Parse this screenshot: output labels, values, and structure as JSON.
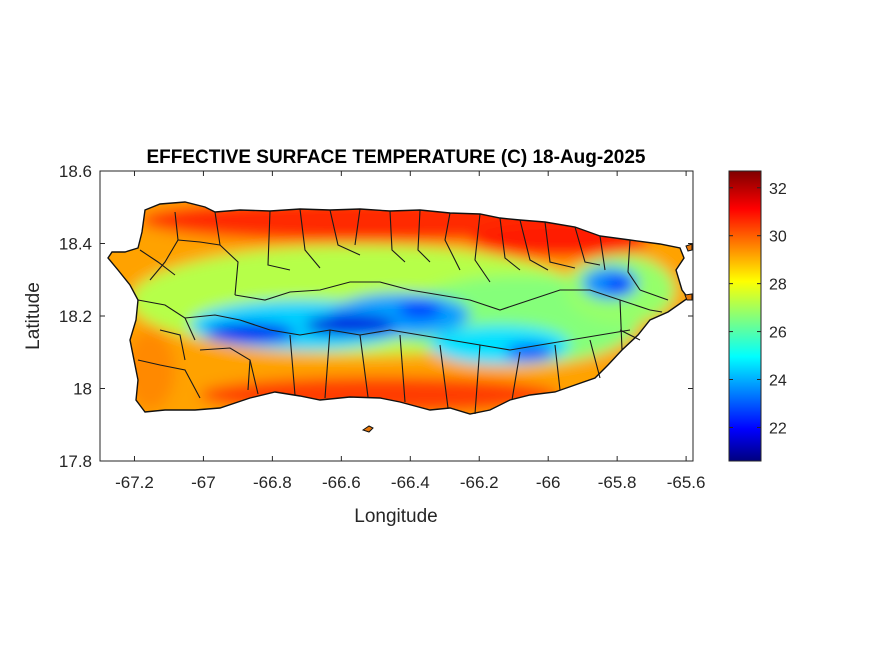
{
  "map": {
    "title": "EFFECTIVE SURFACE TEMPERATURE (C) 18-Aug-2025",
    "xlabel": "Longitude",
    "ylabel": "Latitude",
    "xlim": [
      -67.3,
      -65.58
    ],
    "ylim": [
      17.8,
      18.6
    ],
    "xticks": [
      -67.2,
      -67,
      -66.8,
      -66.6,
      -66.4,
      -66.2,
      -66,
      -65.8,
      -65.6
    ],
    "yticks": [
      17.8,
      18,
      18.2,
      18.4,
      18.6
    ],
    "colormap": "jet",
    "colorbar": {
      "range": [
        20.6,
        32.7
      ],
      "ticks": [
        22,
        24,
        26,
        28,
        30,
        32
      ]
    },
    "region": "Puerto Rico (municipality boundaries)",
    "cool_core": {
      "description": "Cordillera Central / Sierra de Cayey / El Yunque cooler band",
      "min_value_approx": 21
    },
    "coastal_warm_value_approx": 31,
    "colors": {
      "boundary": "#1a1a1a",
      "axes": "#262626"
    }
  }
}
